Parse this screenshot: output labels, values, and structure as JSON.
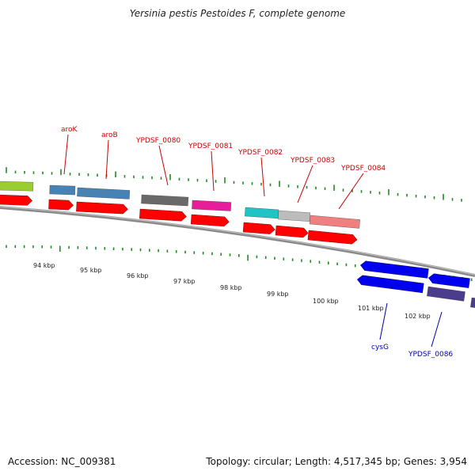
{
  "title": "Yersinia pestis Pestoides F, complete genome",
  "accession": "Accession: NC_009381",
  "summary": "Topology: circular; Length: 4,517,345 bp; Genes: 3,954",
  "colors": {
    "backbone": "#8a8a8a",
    "tick": "#228b22",
    "forward_label": "#cc0000",
    "reverse_label": "#0000aa"
  },
  "scale_labels": [
    "94 kbp",
    "95 kbp",
    "96 kbp",
    "97 kbp",
    "98 kbp",
    "99 kbp",
    "100 kbp",
    "101 kbp",
    "102 kbp"
  ],
  "forward_gene_labels": [
    "aroK",
    "aroB",
    "YPDSF_0080",
    "YPDSF_0081",
    "YPDSF_0082",
    "YPDSF_0083",
    "YPDSF_0084"
  ],
  "reverse_gene_labels": [
    "cysG",
    "YPDSF_0086"
  ],
  "feature_colors": {
    "outer_forward": [
      "#9acd32",
      "#4682b4",
      "#4682b4",
      "#696969",
      "#e61e9c",
      "#20c4c4",
      "#bcbcbc",
      "#f08080"
    ],
    "cds_forward": [
      "#ff0000",
      "#ff0000",
      "#ff0000",
      "#ff0000",
      "#ff0000",
      "#ff0000",
      "#ff0000",
      "#ff0000"
    ],
    "cds_reverse": [
      "#0000ee",
      "#0000ee",
      "#0000ee",
      "#0000ee"
    ],
    "outer_reverse": [
      "#4b3c8c",
      "#4b3c8c"
    ]
  }
}
